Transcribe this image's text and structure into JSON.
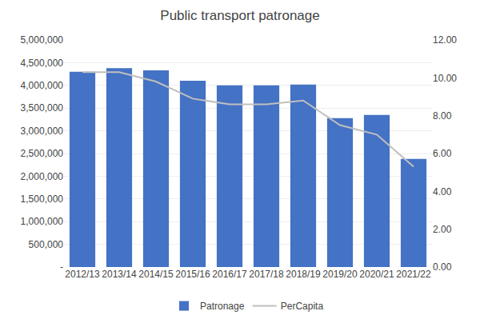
{
  "chart_data": {
    "type": "bar",
    "title": "Public transport patronage",
    "categories": [
      "2012/13",
      "2013/14",
      "2014/15",
      "2015/16",
      "2016/17",
      "2017/18",
      "2018/19",
      "2019/20",
      "2020/21",
      "2021/22"
    ],
    "series": [
      {
        "name": "Patronage",
        "type": "bar",
        "color": "#4472C4",
        "values": [
          4300000,
          4380000,
          4330000,
          4100000,
          4000000,
          4000000,
          4020000,
          3280000,
          3350000,
          2380000
        ]
      },
      {
        "name": "PerCapita",
        "type": "line",
        "color": "#BFBFBF",
        "axis": "y2",
        "values": [
          10.3,
          10.3,
          9.8,
          8.9,
          8.6,
          8.6,
          8.8,
          7.5,
          7.0,
          5.3
        ]
      }
    ],
    "ylim": [
      0,
      5000000
    ],
    "yticks": [
      {
        "value": 0,
        "label": "-"
      },
      {
        "value": 500000,
        "label": "500,000"
      },
      {
        "value": 1000000,
        "label": "1,000,000"
      },
      {
        "value": 1500000,
        "label": "1,500,000"
      },
      {
        "value": 2000000,
        "label": "2,000,000"
      },
      {
        "value": 2500000,
        "label": "2,500,000"
      },
      {
        "value": 3000000,
        "label": "3,000,000"
      },
      {
        "value": 3500000,
        "label": "3,500,000"
      },
      {
        "value": 4000000,
        "label": "4,000,000"
      },
      {
        "value": 4500000,
        "label": "4,500,000"
      },
      {
        "value": 5000000,
        "label": "5,000,000"
      }
    ],
    "y2lim": [
      0,
      12
    ],
    "y2ticks": [
      {
        "value": 0,
        "label": "0.00"
      },
      {
        "value": 2,
        "label": "2.00"
      },
      {
        "value": 4,
        "label": "4.00"
      },
      {
        "value": 6,
        "label": "6.00"
      },
      {
        "value": 8,
        "label": "8.00"
      },
      {
        "value": 10,
        "label": "10.00"
      },
      {
        "value": 12,
        "label": "12.00"
      }
    ],
    "grid": true,
    "legend": "bottom"
  }
}
